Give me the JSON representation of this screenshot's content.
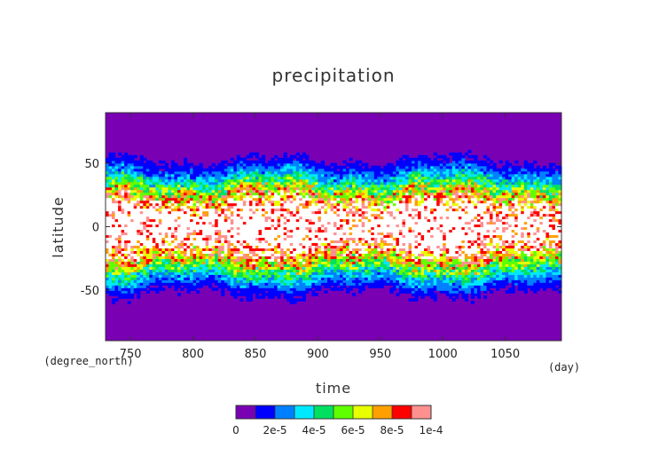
{
  "chart_data": {
    "type": "heatmap",
    "title": "precipitation",
    "xlabel": "time",
    "ylabel": "latitude",
    "x_unit": "(day)",
    "y_unit": "(degree_north)",
    "xlim": [
      730,
      1095
    ],
    "ylim": [
      -90,
      90
    ],
    "x_ticks": [
      750,
      800,
      850,
      900,
      950,
      1000,
      1050
    ],
    "y_ticks": [
      50,
      0,
      -50
    ],
    "colorbar": {
      "levels": [
        0,
        1e-05,
        2e-05,
        3e-05,
        4e-05,
        5e-05,
        6e-05,
        7e-05,
        8e-05,
        9e-05,
        0.0001
      ],
      "colors": [
        "#7a00b4",
        "#0000ff",
        "#0080ff",
        "#00e8ff",
        "#00e060",
        "#60ff00",
        "#e8ff00",
        "#ffa000",
        "#ff0000",
        "#ff9090"
      ],
      "above_color": "#ffffff",
      "tick_values": [
        0,
        2e-05,
        4e-05,
        6e-05,
        8e-05,
        0.0001
      ],
      "tick_labels": [
        "0",
        "2e-5",
        "4e-5",
        "6e-5",
        "8e-5",
        "1e-4"
      ]
    },
    "description_profile": {
      "latitude": [
        -90,
        -60,
        -50,
        -40,
        -30,
        -20,
        -10,
        0,
        10,
        20,
        30,
        40,
        50,
        60,
        90
      ],
      "mean_value": [
        0.0,
        4e-06,
        1.2e-05,
        3.2e-05,
        6e-05,
        9e-05,
        0.00012,
        0.00013,
        0.00012,
        9e-05,
        6e-05,
        3.2e-05,
        1.2e-05,
        4e-06,
        0.0
      ]
    }
  }
}
